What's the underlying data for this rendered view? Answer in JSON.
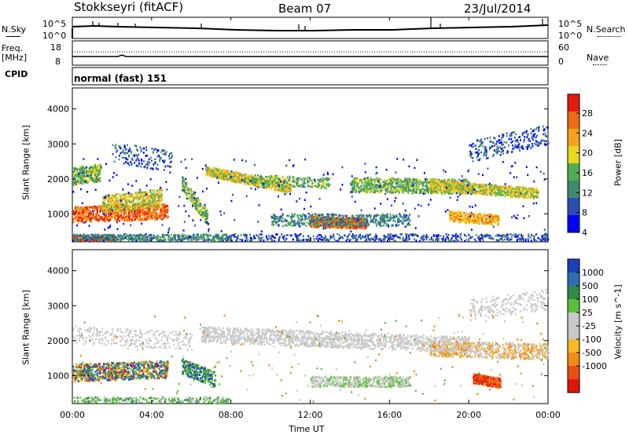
{
  "header": {
    "station": "Stokkseyri (fitACF)",
    "beam": "Beam 07",
    "date": "23/Jul/2014"
  },
  "nsky_panel": {
    "left_label": "N.Sky",
    "right_label": "N.Search",
    "ticks_left": [
      "10^5",
      "10^0"
    ],
    "ticks_right": [
      "10^5",
      "10^0"
    ]
  },
  "freq_panel": {
    "left_label_1": "Freq.",
    "left_label_2": "[MHz]",
    "right_label": "Nave",
    "ticks_left": [
      "18",
      "8"
    ],
    "ticks_right": [
      "60",
      "0"
    ]
  },
  "cpid_panel": {
    "label": "CPID",
    "mode_text": "normal (fast) 151"
  },
  "chart_data": [
    {
      "type": "heatmap",
      "name": "power",
      "ylabel": "Slant Range [km]",
      "yticks": [
        "4000",
        "3000",
        "2000",
        "1000"
      ],
      "ylim": [
        200,
        4600
      ],
      "colorbar_label": "Power [dB]",
      "colorbar_ticks": [
        "28",
        "24",
        "20",
        "16",
        "12",
        "8",
        "4"
      ],
      "colorbar_colors": [
        "#0000ff",
        "#2a4fb0",
        "#3f8a6e",
        "#4faf4f",
        "#e8d81e",
        "#f5a21a",
        "#ef6a14",
        "#e21c10"
      ]
    },
    {
      "type": "heatmap",
      "name": "velocity",
      "ylabel": "Slant Range [km]",
      "yticks": [
        "4000",
        "3000",
        "2000",
        "1000"
      ],
      "ylim": [
        200,
        4600
      ],
      "colorbar_label": "Velocity [m s^-1]",
      "colorbar_ticks": [
        "1000",
        "500",
        "100",
        "25",
        "-25",
        "-100",
        "-500",
        "-1000"
      ],
      "colorbar_colors": [
        "#e0140c",
        "#ea4d12",
        "#f08a18",
        "#f6b825",
        "#c8c8c8",
        "#c8c8c8",
        "#5cbf3c",
        "#2f8a4a",
        "#2f6fb0",
        "#1a3fb8"
      ]
    }
  ],
  "xaxis": {
    "label": "Time UT",
    "ticks": [
      "00:00",
      "04:00",
      "08:00",
      "12:00",
      "16:00",
      "20:00",
      "00:00"
    ]
  }
}
